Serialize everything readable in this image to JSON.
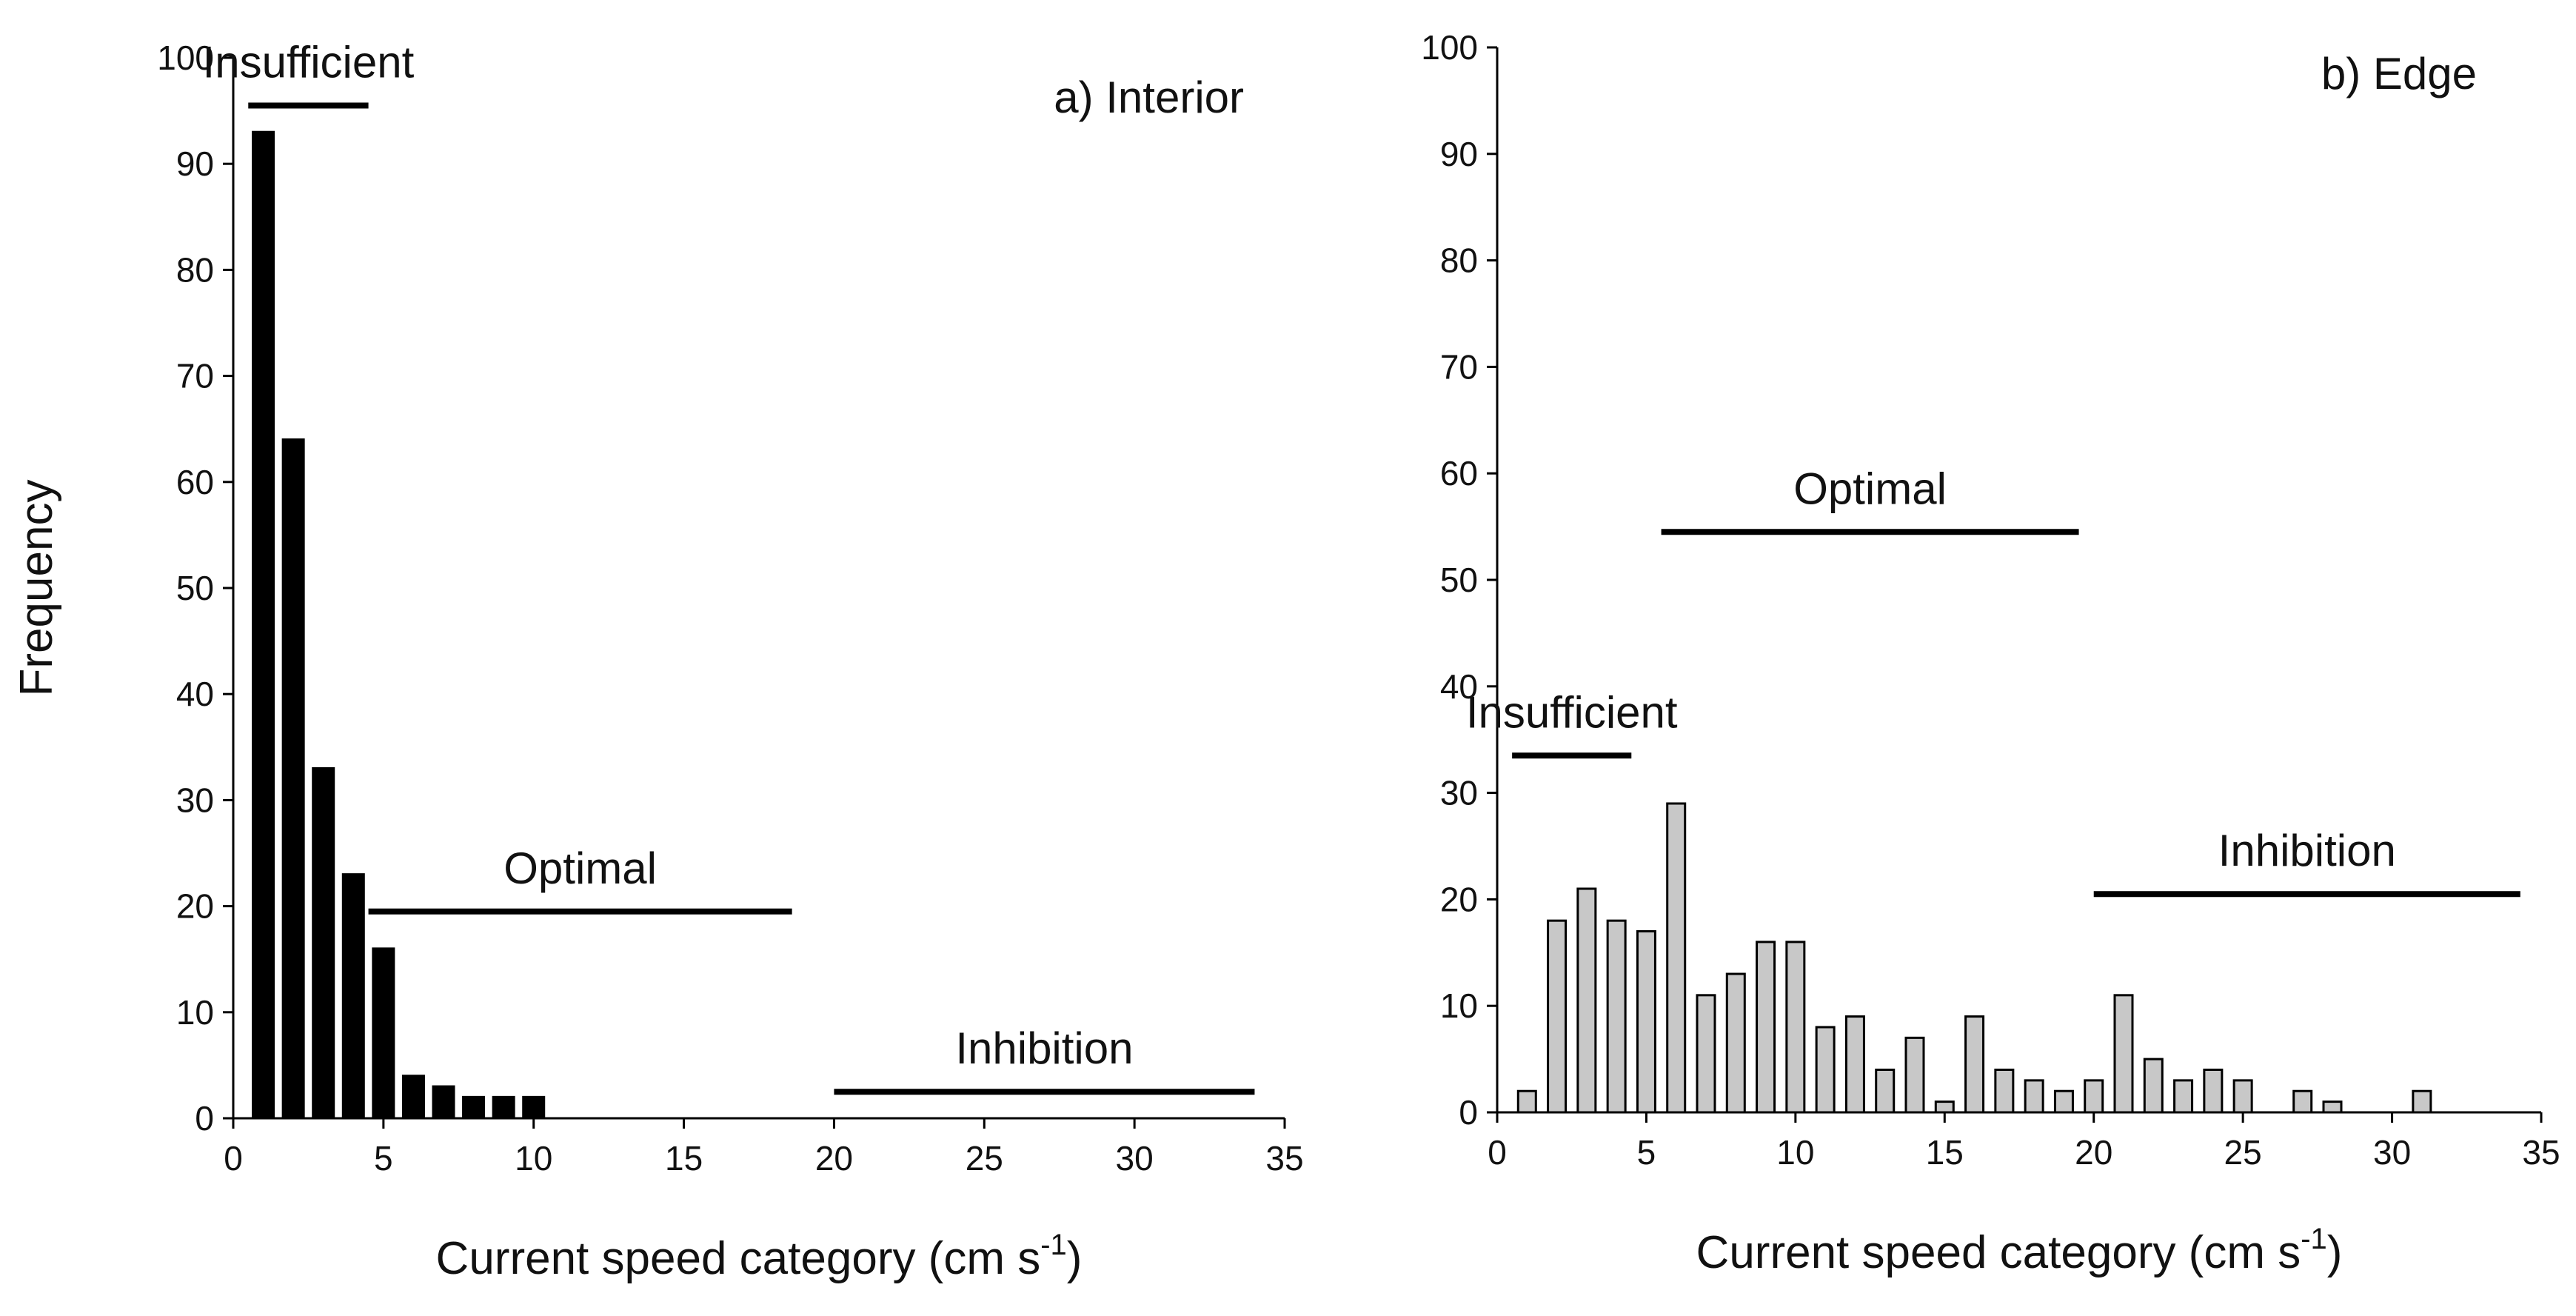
{
  "chart_data": [
    {
      "type": "bar",
      "title": "a) Interior",
      "xlabel": "Current speed category (cm s",
      "xlabel_sup": "-1",
      "xlabel_close": ")",
      "ylabel": "Frequency",
      "xlim": [
        0,
        35
      ],
      "ylim": [
        0,
        100
      ],
      "xticks": [
        0,
        5,
        10,
        15,
        20,
        25,
        30,
        35
      ],
      "yticks": [
        0,
        10,
        20,
        30,
        40,
        50,
        60,
        70,
        80,
        90,
        100
      ],
      "bar_color": "#000000",
      "bar_edge": "#000000",
      "x": [
        1,
        2,
        3,
        4,
        5,
        6,
        7,
        8,
        9,
        10
      ],
      "values": [
        93,
        64,
        33,
        23,
        16,
        4,
        3,
        2,
        2,
        2
      ],
      "ranges": [
        {
          "label": "Insufficient",
          "x0": 0.5,
          "x1": 4.5,
          "y": 95.5
        },
        {
          "label": "Optimal",
          "x0": 4.5,
          "x1": 18.6,
          "y": 19.5
        },
        {
          "label": "Inhibition",
          "x0": 20,
          "x1": 34,
          "y": 2.5
        }
      ]
    },
    {
      "type": "bar",
      "title": "b) Edge",
      "xlabel": "Current speed category (cm s",
      "xlabel_sup": "-1",
      "xlabel_close": ")",
      "ylabel": "",
      "xlim": [
        0,
        35
      ],
      "ylim": [
        0,
        100
      ],
      "xticks": [
        0,
        5,
        10,
        15,
        20,
        25,
        30,
        35
      ],
      "yticks": [
        0,
        10,
        20,
        30,
        40,
        50,
        60,
        70,
        80,
        90,
        100
      ],
      "bar_color": "#c8c8c8",
      "bar_edge": "#000000",
      "x": [
        1,
        2,
        3,
        4,
        5,
        6,
        7,
        8,
        9,
        10,
        11,
        12,
        13,
        14,
        15,
        16,
        17,
        18,
        19,
        20,
        21,
        22,
        23,
        24,
        25,
        27,
        28,
        31
      ],
      "values": [
        2,
        18,
        21,
        18,
        17,
        29,
        11,
        13,
        16,
        16,
        8,
        9,
        4,
        7,
        1,
        9,
        4,
        3,
        2,
        3,
        11,
        5,
        3,
        4,
        3,
        2,
        1,
        2
      ],
      "ranges": [
        {
          "label": "Insufficient",
          "x0": 0.5,
          "x1": 4.5,
          "y": 33.5
        },
        {
          "label": "Optimal",
          "x0": 5.5,
          "x1": 19.5,
          "y": 54.5
        },
        {
          "label": "Inhibition",
          "x0": 20,
          "x1": 34.3,
          "y": 20.5
        }
      ]
    }
  ]
}
